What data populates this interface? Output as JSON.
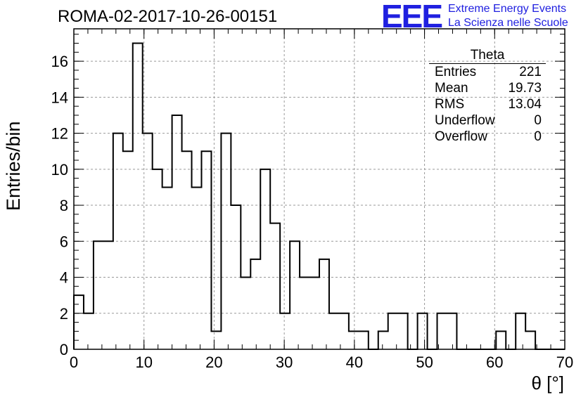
{
  "title": "ROMA-02-2017-10-26-00151",
  "logo": {
    "mark": "EEE",
    "line1": "Extreme Energy Events",
    "line2": "La Scienza nelle Scuole",
    "color": "#2020e0"
  },
  "stats": {
    "name": "Theta",
    "rows": [
      {
        "label": "Entries",
        "value": "221"
      },
      {
        "label": "Mean",
        "value": "19.73"
      },
      {
        "label": "RMS",
        "value": "13.04"
      },
      {
        "label": "Underflow",
        "value": "0"
      },
      {
        "label": "Overflow",
        "value": "0"
      }
    ]
  },
  "chart_data": {
    "type": "bar",
    "histogram": true,
    "title": "ROMA-02-2017-10-26-00151",
    "xlabel": "θ [°]",
    "ylabel": "Entries/bin",
    "xlim": [
      0,
      70
    ],
    "ylim": [
      0,
      17.8
    ],
    "bin_width": 1.4,
    "values": [
      3,
      2,
      6,
      6,
      12,
      11,
      17,
      12,
      10,
      9,
      13,
      11,
      9,
      11,
      1,
      12,
      8,
      4,
      5,
      10,
      7,
      2,
      6,
      4,
      4,
      5,
      2,
      2,
      1,
      1,
      0,
      1,
      2,
      2,
      0,
      2,
      0,
      2,
      2,
      0,
      0,
      0,
      0,
      1,
      0,
      2,
      1,
      0,
      0,
      0
    ],
    "xticks": [
      0,
      10,
      20,
      30,
      40,
      50,
      60,
      70
    ],
    "yticks": [
      0,
      2,
      4,
      6,
      8,
      10,
      12,
      14,
      16
    ],
    "grid": true,
    "line_color": "#000000",
    "grid_color": "#999999"
  }
}
